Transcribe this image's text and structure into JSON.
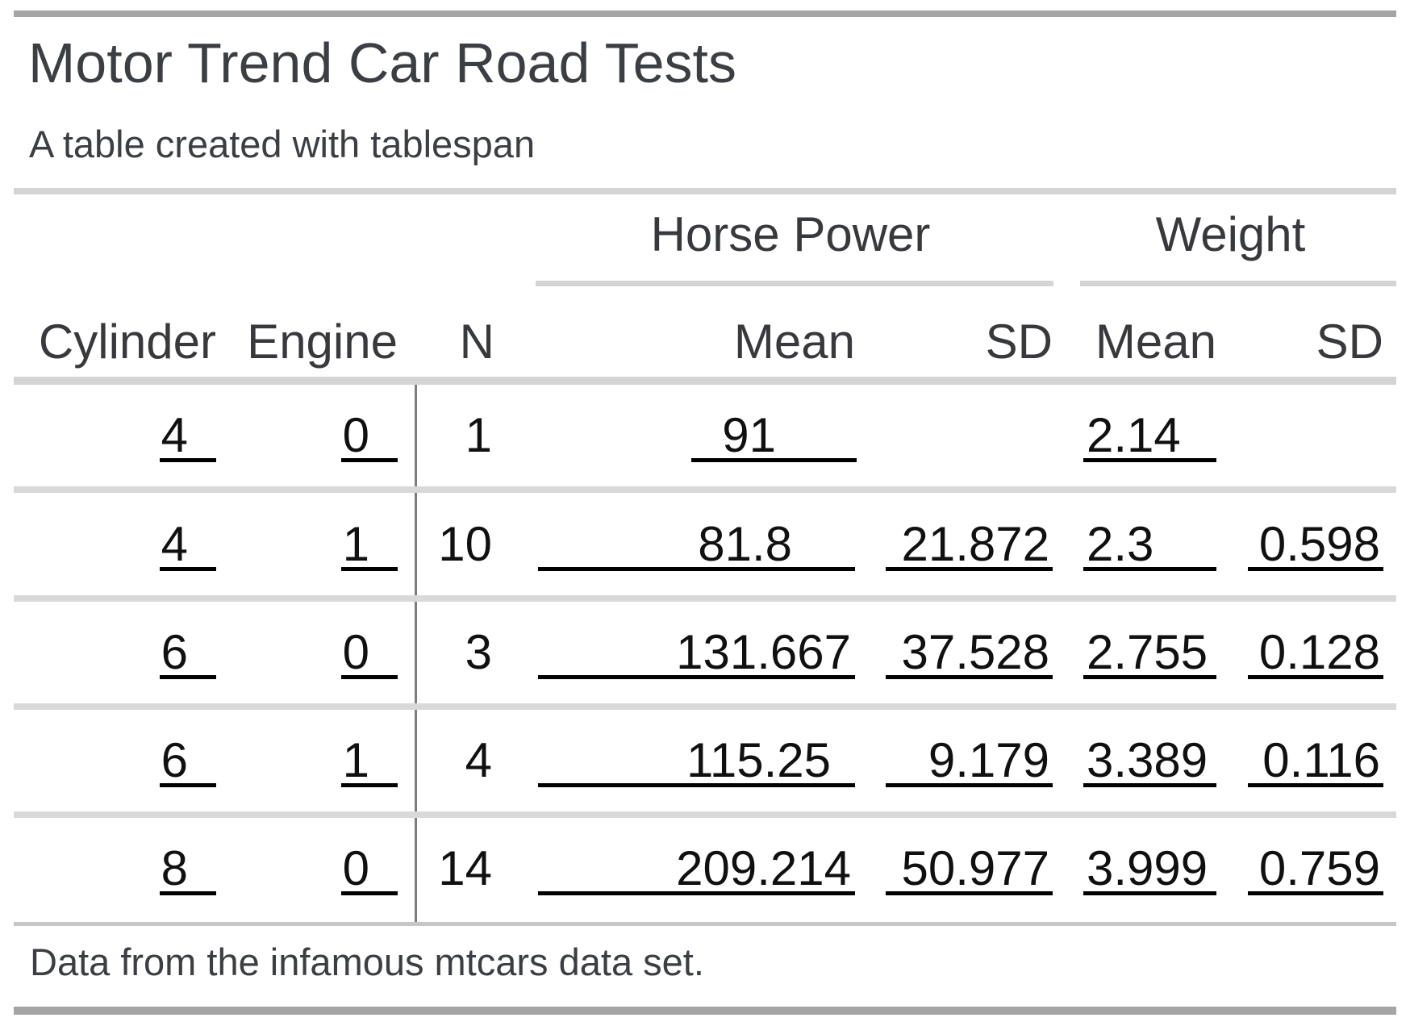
{
  "title": "Motor Trend Car Road Tests",
  "subtitle": "A table created with tablespan",
  "footnote": "Data from the infamous mtcars data set.",
  "spanners": {
    "horse_power": "Horse Power",
    "weight": "Weight"
  },
  "columns": {
    "cylinder": "Cylinder",
    "engine": "Engine",
    "n": "N",
    "hp_mean": "Mean",
    "hp_sd": "SD",
    "wt_mean": "Mean",
    "wt_sd": "SD"
  },
  "rows": [
    {
      "cylinder": "4",
      "engine": "0",
      "n": "1",
      "hp_mean": "91",
      "hp_sd": "",
      "wt_mean": "2.14",
      "wt_sd": ""
    },
    {
      "cylinder": "4",
      "engine": "1",
      "n": "10",
      "hp_mean": "81.8",
      "hp_sd": "21.872",
      "wt_mean": "2.3",
      "wt_sd": "0.598"
    },
    {
      "cylinder": "6",
      "engine": "0",
      "n": "3",
      "hp_mean": "131.667",
      "hp_sd": "37.528",
      "wt_mean": "2.755",
      "wt_sd": "0.128"
    },
    {
      "cylinder": "6",
      "engine": "1",
      "n": "4",
      "hp_mean": "115.25",
      "hp_sd": "9.179",
      "wt_mean": "3.389",
      "wt_sd": "0.116"
    },
    {
      "cylinder": "8",
      "engine": "0",
      "n": "14",
      "hp_mean": "209.214",
      "hp_sd": "50.977",
      "wt_mean": "3.999",
      "wt_sd": "0.759"
    }
  ],
  "colors": {
    "heavy_rule": "#a5a5a5",
    "light_rule": "#d4d4d4",
    "row_rule": "#d9d9d9",
    "cell_underline": "#000000",
    "divider": "#7d7d7d",
    "heading_text": "#3b3e42",
    "data_text": "#101010"
  }
}
